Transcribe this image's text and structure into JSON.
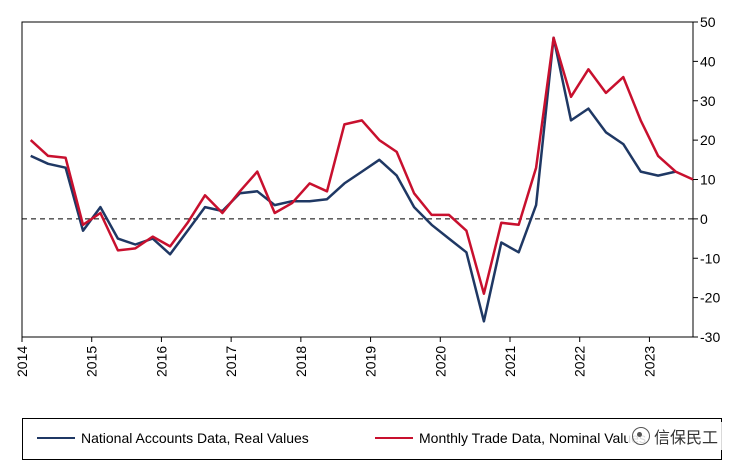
{
  "chart_data": {
    "type": "line",
    "title": "",
    "xlabel": "",
    "ylabel": "",
    "ylim": [
      -30,
      50
    ],
    "y_ticks": [
      -30,
      -20,
      -10,
      0,
      10,
      20,
      30,
      40,
      50
    ],
    "y_tick_labels": [
      "-30",
      "-20",
      "-10",
      "0",
      "10",
      "20",
      "30",
      "40",
      "50"
    ],
    "y_axis_side": "right",
    "x_tick_labels": [
      "2014",
      "2015",
      "2016",
      "2017",
      "2018",
      "2019",
      "2020",
      "2021",
      "2022",
      "2023"
    ],
    "zero_line": "dashed",
    "legend_placement": "bottom",
    "x": [
      "2014-Q1",
      "2014-Q2",
      "2014-Q3",
      "2014-Q4",
      "2015-Q1",
      "2015-Q2",
      "2015-Q3",
      "2015-Q4",
      "2016-Q1",
      "2016-Q2",
      "2016-Q3",
      "2016-Q4",
      "2017-Q1",
      "2017-Q2",
      "2017-Q3",
      "2017-Q4",
      "2018-Q1",
      "2018-Q2",
      "2018-Q3",
      "2018-Q4",
      "2019-Q1",
      "2019-Q2",
      "2019-Q3",
      "2019-Q4",
      "2020-Q1",
      "2020-Q2",
      "2020-Q3",
      "2020-Q4",
      "2021-Q1",
      "2021-Q2",
      "2021-Q3",
      "2021-Q4",
      "2022-Q1",
      "2022-Q2",
      "2022-Q3",
      "2022-Q4",
      "2023-Q1",
      "2023-Q2",
      "2023-Q3"
    ],
    "series": [
      {
        "name": "National Accounts Data, Real Values",
        "color": "#1f3864",
        "values": [
          16,
          14,
          13,
          -3,
          3,
          -5,
          -6.5,
          -5,
          -9,
          -3,
          3,
          2,
          6.5,
          7,
          3.5,
          4.5,
          4.5,
          5,
          9,
          12,
          15,
          11,
          3,
          -1.5,
          -5,
          -8.5,
          -26,
          -6,
          -8.5,
          3.5,
          46,
          25,
          28,
          22,
          19,
          12,
          11,
          12,
          null
        ]
      },
      {
        "name": "Monthly Trade Data, Nominal Values",
        "color": "#c8102e",
        "values": [
          20,
          16,
          15.5,
          -1.5,
          1.5,
          -8,
          -7.5,
          -4.5,
          -7,
          -1,
          6,
          1.5,
          7,
          12,
          1.5,
          4,
          9,
          7,
          24,
          25,
          20,
          17,
          6.5,
          1,
          1,
          -3,
          -19,
          -1,
          -1.5,
          13,
          46,
          31,
          38,
          32,
          36,
          25,
          16,
          12,
          10
        ]
      }
    ]
  },
  "watermark": {
    "icon": "wechat-icon",
    "text": "信保民工"
  }
}
